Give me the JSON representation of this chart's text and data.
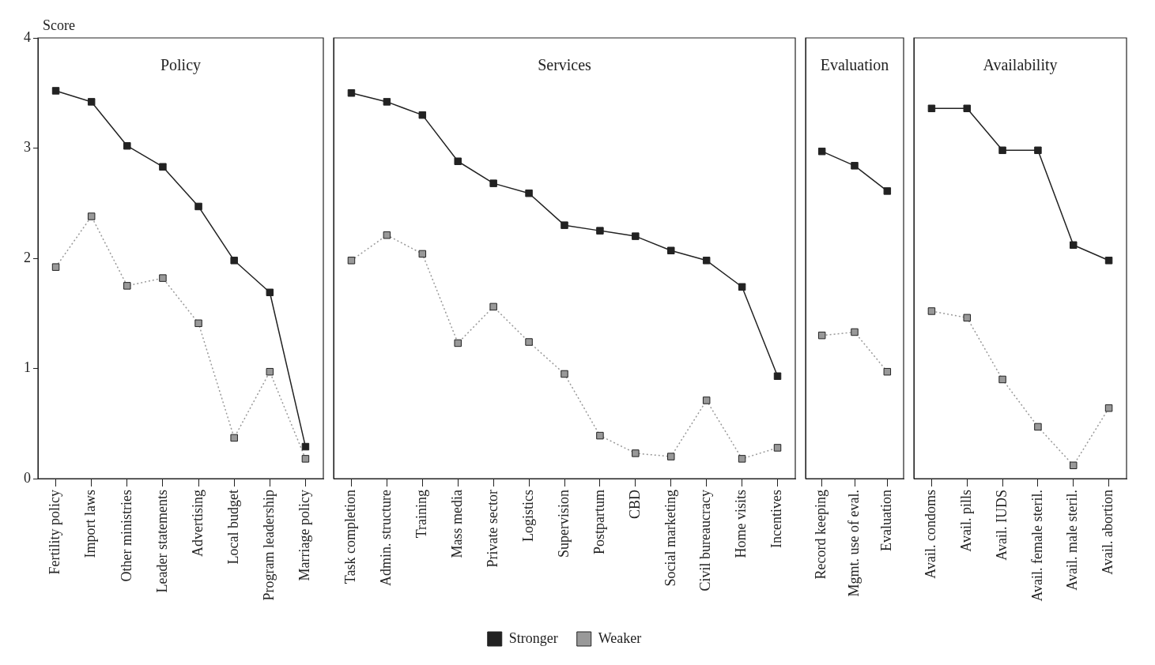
{
  "chart_data": [
    {
      "type": "line",
      "title": "Policy",
      "ylabel": "Score",
      "categories": [
        "Fertility policy",
        "Import laws",
        "Other ministries",
        "Leader statements",
        "Advertising",
        "Local budget",
        "Program leadership",
        "Marriage policy"
      ],
      "series": [
        {
          "color": "#222222",
          "line_style": "solid",
          "values": [
            3.52,
            3.42,
            3.02,
            2.83,
            2.47,
            1.98,
            1.69,
            0.29
          ]
        },
        {
          "color": "#999999",
          "line_style": "dotted",
          "values": [
            1.92,
            2.38,
            1.75,
            1.82,
            1.41,
            0.37,
            0.97,
            0.18
          ]
        }
      ],
      "ylim": [
        0,
        4
      ],
      "yticks": [
        0,
        1,
        2,
        3,
        4
      ],
      "grid": false,
      "marker": "square"
    },
    {
      "type": "line",
      "title": "Services",
      "categories": [
        "Task completion",
        "Admin. structure",
        "Training",
        "Mass media",
        "Private sector",
        "Logistics",
        "Supervision",
        "Postpartum",
        "CBD",
        "Social marketing",
        "Civil bureaucracy",
        "Home visits",
        "Incentives"
      ],
      "series": [
        {
          "name": "Stronger",
          "color": "#222222",
          "line_style": "solid",
          "values": [
            3.5,
            3.42,
            3.3,
            2.88,
            2.68,
            2.59,
            2.3,
            2.25,
            2.2,
            2.07,
            1.98,
            1.74,
            0.93
          ]
        },
        {
          "name": "Weaker",
          "color": "#999999",
          "line_style": "dotted",
          "values": [
            1.98,
            2.21,
            2.04,
            1.23,
            1.56,
            1.24,
            0.95,
            0.39,
            0.23,
            0.2,
            0.71,
            0.18,
            0.28
          ]
        }
      ],
      "ylim": [
        0,
        4
      ],
      "yticks": [
        0,
        1,
        2,
        3,
        4
      ],
      "tick_labels": "x",
      "grid": false,
      "legend": "bottom",
      "marker": "square"
    },
    {
      "type": "line",
      "title": "Evaluation",
      "categories": [
        "Record keeping",
        "Mgmt. use of eval.",
        "Evaluation"
      ],
      "series": [
        {
          "color": "#222222",
          "line_style": "solid",
          "values": [
            2.97,
            2.84,
            2.61
          ]
        },
        {
          "color": "#999999",
          "line_style": "dotted",
          "values": [
            1.3,
            1.33,
            0.97
          ]
        }
      ],
      "ylim": [
        0,
        4
      ],
      "yticks": [
        0,
        1,
        2,
        3,
        4
      ],
      "tick_labels": "x",
      "grid": false,
      "marker": "square"
    },
    {
      "type": "line",
      "title": "Availability",
      "categories": [
        "Avail. condoms",
        "Avail. pills",
        "Avail. IUDS",
        "Avail. female steril.",
        "Avail. male steril.",
        "Avail. abortion"
      ],
      "series": [
        {
          "color": "#222222",
          "line_style": "solid",
          "values": [
            3.36,
            3.36,
            2.98,
            2.98,
            2.12,
            1.98
          ]
        },
        {
          "color": "#999999",
          "line_style": "dotted",
          "values": [
            1.52,
            1.46,
            0.9,
            0.47,
            0.12,
            0.64
          ]
        }
      ],
      "ylim": [
        0,
        4
      ],
      "yticks": [
        0,
        1,
        2,
        3,
        4
      ],
      "tick_labels": "x",
      "grid": false,
      "marker": "square"
    }
  ]
}
